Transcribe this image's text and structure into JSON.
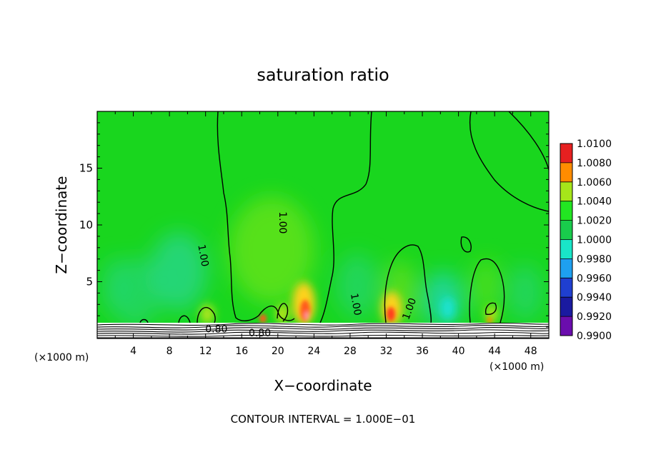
{
  "chart_data": {
    "type": "heatmap",
    "title": "saturation ratio",
    "xlabel": "X−coordinate",
    "ylabel": "Z−coordinate",
    "x_unit_left": "(×1000 m)",
    "x_unit_right": "(×1000 m)",
    "footer": "CONTOUR INTERVAL = 1.000E−01",
    "xlim": [
      0,
      50
    ],
    "ylim": [
      0,
      20
    ],
    "x_ticks": [
      4,
      8,
      12,
      16,
      20,
      24,
      28,
      32,
      36,
      40,
      44,
      48
    ],
    "y_ticks": [
      5,
      10,
      15
    ],
    "colorbar": {
      "labels": [
        "0.9900",
        "0.9920",
        "0.9940",
        "0.9960",
        "0.9980",
        "1.0000",
        "1.0020",
        "1.0040",
        "1.0060",
        "1.0080",
        "1.0100"
      ],
      "colors": [
        "#6a0dad",
        "#1a1aa0",
        "#1f3fd0",
        "#1ea0f0",
        "#19e6c8",
        "#19cc4c",
        "#22e622",
        "#a6e61a",
        "#ff8c00",
        "#e62020",
        "#f08080"
      ]
    },
    "contour_labels": [
      {
        "text": "1.00",
        "x": 11.7,
        "z": 7.3,
        "rotate": 80
      },
      {
        "text": "1.00",
        "x": 20.5,
        "z": 10.2,
        "rotate": 90
      },
      {
        "text": "1.00",
        "x": 28.6,
        "z": 3.0,
        "rotate": 80
      },
      {
        "text": "1.00",
        "x": 34.6,
        "z": 2.6,
        "rotate": -70
      },
      {
        "text": "0.80",
        "x": 13.2,
        "z": 0.8,
        "rotate": 0
      },
      {
        "text": "0.80",
        "x": 18.0,
        "z": 0.45,
        "rotate": 0
      }
    ]
  }
}
